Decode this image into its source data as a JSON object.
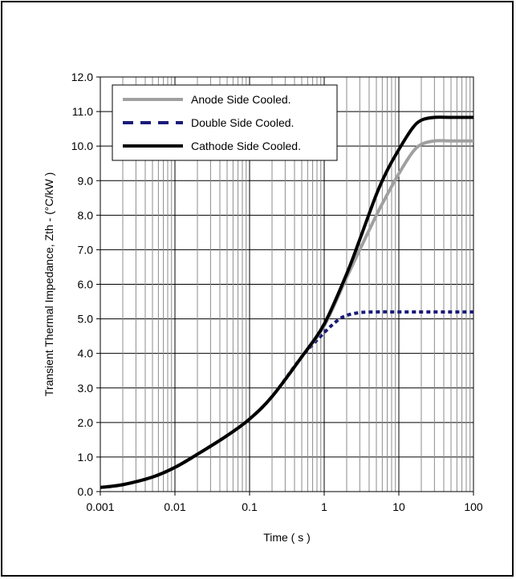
{
  "chart_data": {
    "type": "line",
    "xlabel": "Time ( s )",
    "ylabel": "Transient Thermal Impedance, Zth - (°C/kW )",
    "x_scale": "log",
    "xlim": [
      0.001,
      100
    ],
    "ylim": [
      0,
      12
    ],
    "x_ticks": [
      0.001,
      0.01,
      0.1,
      1,
      10,
      100
    ],
    "x_tick_labels": [
      "0.001",
      "0.01",
      "0.1",
      "1",
      "10",
      "100"
    ],
    "y_ticks": [
      0,
      1,
      2,
      3,
      4,
      5,
      6,
      7,
      8,
      9,
      10,
      11,
      12
    ],
    "y_tick_labels": [
      "0.0",
      "1.0",
      "2.0",
      "3.0",
      "4.0",
      "5.0",
      "6.0",
      "7.0",
      "8.0",
      "9.0",
      "10.0",
      "11.0",
      "12.0"
    ],
    "grid": "on",
    "legend_position": "top-left",
    "series": [
      {
        "name": "Anode Side Cooled.",
        "color": "#a0a0a0",
        "style": "solid",
        "x": [
          0.001,
          0.002,
          0.005,
          0.01,
          0.02,
          0.05,
          0.1,
          0.2,
          0.5,
          1,
          2,
          3,
          5,
          7,
          10,
          15,
          20,
          30,
          50,
          100
        ],
        "y": [
          0.12,
          0.2,
          0.42,
          0.7,
          1.08,
          1.62,
          2.1,
          2.75,
          3.9,
          4.8,
          6.2,
          7.0,
          8.0,
          8.6,
          9.2,
          9.8,
          10.05,
          10.15,
          10.15,
          10.15
        ]
      },
      {
        "name": "Double Side Cooled.",
        "color": "#1a1a7a",
        "style": "dashed",
        "x": [
          0.001,
          0.002,
          0.005,
          0.01,
          0.02,
          0.05,
          0.1,
          0.2,
          0.5,
          1,
          1.5,
          2,
          3,
          5,
          10,
          100
        ],
        "y": [
          0.12,
          0.2,
          0.42,
          0.7,
          1.08,
          1.62,
          2.1,
          2.75,
          3.9,
          4.6,
          4.95,
          5.1,
          5.18,
          5.2,
          5.2,
          5.2
        ]
      },
      {
        "name": "Cathode Side Cooled.",
        "color": "#000000",
        "style": "solid",
        "x": [
          0.001,
          0.002,
          0.005,
          0.01,
          0.02,
          0.05,
          0.1,
          0.2,
          0.5,
          1,
          2,
          3,
          5,
          7,
          10,
          15,
          20,
          30,
          50,
          100
        ],
        "y": [
          0.12,
          0.2,
          0.42,
          0.7,
          1.08,
          1.62,
          2.1,
          2.75,
          3.9,
          4.85,
          6.3,
          7.3,
          8.6,
          9.3,
          9.9,
          10.5,
          10.75,
          10.83,
          10.83,
          10.83
        ]
      }
    ]
  }
}
